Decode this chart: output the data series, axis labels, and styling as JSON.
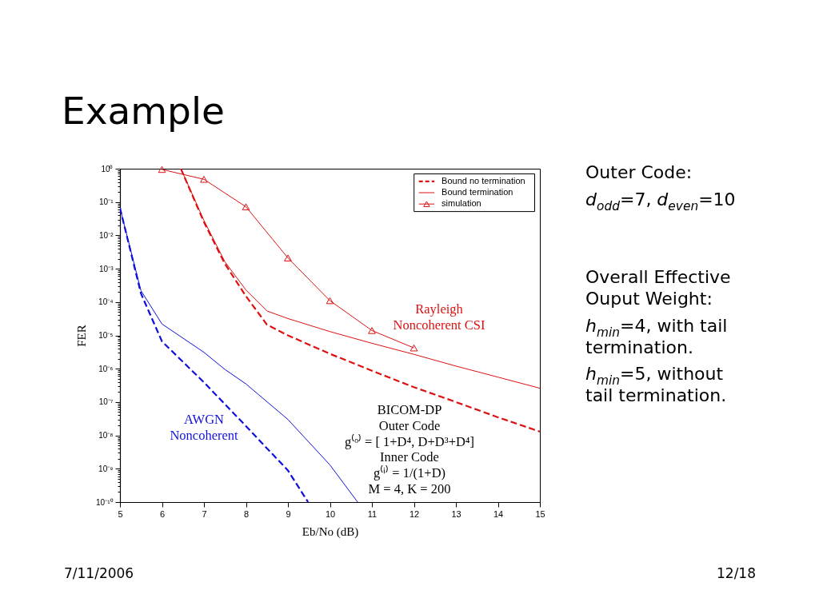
{
  "chart_data": {
    "type": "line",
    "title": "Example",
    "xlabel": "Eb/No  (dB)",
    "ylabel": "FER",
    "log": "y",
    "xlim": [
      5,
      15
    ],
    "xticks": [
      5,
      6,
      7,
      8,
      9,
      10,
      11,
      12,
      13,
      14,
      15
    ],
    "ylim": [
      1e-10,
      1
    ],
    "yticks": [
      {
        "value": 1e-10,
        "label": "10⁻¹⁰"
      },
      {
        "value": 2e-10,
        "label": null
      },
      {
        "value": 3e-10,
        "label": null
      },
      {
        "value": 4e-10,
        "label": null
      },
      {
        "value": 5e-10,
        "label": null
      },
      {
        "value": 6e-10,
        "label": null
      },
      {
        "value": 7e-10,
        "label": null
      },
      {
        "value": 8e-10,
        "label": null
      },
      {
        "value": 9e-10,
        "label": null
      },
      {
        "value": 1e-09,
        "label": "10⁻⁹"
      },
      {
        "value": 2e-09,
        "label": null
      },
      {
        "value": 3e-09,
        "label": null
      },
      {
        "value": 4e-09,
        "label": null
      },
      {
        "value": 5e-09,
        "label": null
      },
      {
        "value": 6e-09,
        "label": null
      },
      {
        "value": 7e-09,
        "label": null
      },
      {
        "value": 8e-09,
        "label": null
      },
      {
        "value": 9e-09,
        "label": null
      },
      {
        "value": 1e-08,
        "label": "10⁻⁸"
      },
      {
        "value": 2e-08,
        "label": null
      },
      {
        "value": 3e-08,
        "label": null
      },
      {
        "value": 4e-08,
        "label": null
      },
      {
        "value": 5e-08,
        "label": null
      },
      {
        "value": 6e-08,
        "label": null
      },
      {
        "value": 7e-08,
        "label": null
      },
      {
        "value": 8e-08,
        "label": null
      },
      {
        "value": 9e-08,
        "label": null
      },
      {
        "value": 1e-07,
        "label": "10⁻⁷"
      },
      {
        "value": 2e-07,
        "label": null
      },
      {
        "value": 3e-07,
        "label": null
      },
      {
        "value": 4e-07,
        "label": null
      },
      {
        "value": 5e-07,
        "label": null
      },
      {
        "value": 6e-07,
        "label": null
      },
      {
        "value": 7e-07,
        "label": null
      },
      {
        "value": 8e-07,
        "label": null
      },
      {
        "value": 9e-07,
        "label": null
      },
      {
        "value": 1e-06,
        "label": "10⁻⁶"
      },
      {
        "value": 2e-06,
        "label": null
      },
      {
        "value": 3e-06,
        "label": null
      },
      {
        "value": 4e-06,
        "label": null
      },
      {
        "value": 5e-06,
        "label": null
      },
      {
        "value": 6e-06,
        "label": null
      },
      {
        "value": 7e-06,
        "label": null
      },
      {
        "value": 8e-06,
        "label": null
      },
      {
        "value": 9e-06,
        "label": null
      },
      {
        "value": 1e-05,
        "label": "10⁻⁵"
      },
      {
        "value": 2e-05,
        "label": null
      },
      {
        "value": 3e-05,
        "label": null
      },
      {
        "value": 4e-05,
        "label": null
      },
      {
        "value": 5e-05,
        "label": null
      },
      {
        "value": 6e-05,
        "label": null
      },
      {
        "value": 7e-05,
        "label": null
      },
      {
        "value": 8e-05,
        "label": null
      },
      {
        "value": 9e-05,
        "label": null
      },
      {
        "value": 0.0001,
        "label": "10⁻⁴"
      },
      {
        "value": 0.0002,
        "label": null
      },
      {
        "value": 0.0003,
        "label": null
      },
      {
        "value": 0.0004,
        "label": null
      },
      {
        "value": 0.0005,
        "label": null
      },
      {
        "value": 0.0006,
        "label": null
      },
      {
        "value": 0.0007,
        "label": null
      },
      {
        "value": 0.0008,
        "label": null
      },
      {
        "value": 0.0009,
        "label": null
      },
      {
        "value": 0.001,
        "label": "10⁻³"
      },
      {
        "value": 0.002,
        "label": null
      },
      {
        "value": 0.003,
        "label": null
      },
      {
        "value": 0.004,
        "label": null
      },
      {
        "value": 0.005,
        "label": null
      },
      {
        "value": 0.006,
        "label": null
      },
      {
        "value": 0.007,
        "label": null
      },
      {
        "value": 0.008,
        "label": null
      },
      {
        "value": 0.009,
        "label": null
      },
      {
        "value": 0.01,
        "label": "10⁻²"
      },
      {
        "value": 0.02,
        "label": null
      },
      {
        "value": 0.03,
        "label": null
      },
      {
        "value": 0.04,
        "label": null
      },
      {
        "value": 0.05,
        "label": null
      },
      {
        "value": 0.06,
        "label": null
      },
      {
        "value": 0.07,
        "label": null
      },
      {
        "value": 0.08,
        "label": null
      },
      {
        "value": 0.09,
        "label": null
      },
      {
        "value": 0.1,
        "label": "10⁻¹"
      },
      {
        "value": 0.2,
        "label": null
      },
      {
        "value": 0.3,
        "label": null
      },
      {
        "value": 0.4,
        "label": null
      },
      {
        "value": 0.5,
        "label": null
      },
      {
        "value": 0.6,
        "label": null
      },
      {
        "value": 0.7,
        "label": null
      },
      {
        "value": 0.8,
        "label": null
      },
      {
        "value": 0.9,
        "label": null
      },
      {
        "value": 1,
        "label": "10⁰"
      }
    ],
    "legend": "top right",
    "series": [
      {
        "name": "Bound no termination",
        "color": "#dd1111",
        "line_style": "dashed",
        "marker": "none",
        "x": [
          6.45,
          7,
          7.5,
          8,
          8.5,
          9,
          10,
          11,
          12,
          13,
          14,
          15
        ],
        "values": [
          1,
          0.025,
          0.0014,
          0.00015,
          2.1e-05,
          1e-05,
          2.8e-06,
          8.7e-07,
          2.8e-07,
          1e-07,
          3.5e-08,
          1.3e-08
        ]
      },
      {
        "name": "Bound termination",
        "color": "#dd1111",
        "line_style": "solid",
        "marker": "none",
        "x": [
          6.45,
          7,
          7.5,
          8,
          8.5,
          9,
          10,
          11,
          12,
          13,
          14,
          15
        ],
        "values": [
          1,
          0.028,
          0.0016,
          0.00023,
          5.4e-05,
          3.2e-05,
          1.3e-05,
          5.8e-06,
          2.7e-06,
          1.2e-06,
          5.6e-07,
          2.6e-07
        ]
      },
      {
        "name": "simulation",
        "color": "#dd1111",
        "line_style": "solid",
        "marker": "triangle",
        "x": [
          6,
          7,
          8,
          9,
          10,
          11,
          12
        ],
        "values": [
          0.95,
          0.48,
          0.072,
          0.0021,
          0.00011,
          1.4e-05,
          4.2e-06
        ]
      },
      {
        "color": "#1010dd",
        "line_style": "dashed",
        "marker": "none",
        "x": [
          5,
          5.5,
          6,
          7,
          8,
          9,
          9.48
        ],
        "values": [
          0.066,
          0.00018,
          6.6e-06,
          3.9e-07,
          1.9e-08,
          8.9e-10,
          1e-10
        ]
      },
      {
        "color": "#1010dd",
        "line_style": "solid",
        "marker": "none",
        "x": [
          5,
          5.5,
          6,
          7,
          7.5,
          8,
          9,
          10,
          10.66
        ],
        "values": [
          0.066,
          0.00022,
          2.2e-05,
          3.1e-06,
          9.5e-07,
          3.5e-07,
          3e-08,
          1.3e-09,
          1e-10
        ]
      }
    ],
    "annotations": [
      "Rayleigh\nNoncoherent CSI",
      "AWGN\nNoncoherent",
      "BICOM-DP\nOuter Code\ng⁽ᵒ⁾ = [ 1+D⁴, D+D³+D⁴]\nInner Code\ng⁽ⁱ⁾ = 1/(1+D)\nM = 4, K = 200",
      "Outer Code:",
      "d$_{odd}$=7, d$_{even}$=10",
      "Overall Effective\nOuput Weight:",
      "h$_{min}$=4, with tail\ntermination.",
      "h$_{min}$=5, without\ntail termination.",
      "7/11/2006",
      "12/18"
    ]
  }
}
